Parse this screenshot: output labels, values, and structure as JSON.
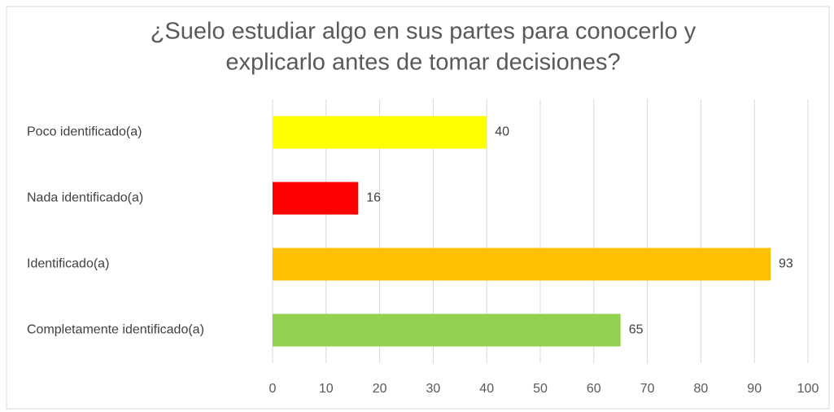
{
  "chart_data": {
    "type": "bar",
    "orientation": "horizontal",
    "title": [
      "¿Suelo estudiar algo en sus partes para conocerlo y",
      "explicarlo antes de tomar decisiones?"
    ],
    "categories": [
      "Poco identificado(a)",
      "Nada identificado(a)",
      "Identificado(a)",
      "Completamente identificado(a)"
    ],
    "values": [
      40,
      16,
      93,
      65
    ],
    "colors": [
      "#ffff00",
      "#ff0000",
      "#ffc000",
      "#92d050"
    ],
    "xlim": [
      0,
      100
    ],
    "xticks": [
      0,
      10,
      20,
      30,
      40,
      50,
      60,
      70,
      80,
      90,
      100
    ],
    "grid": true
  }
}
